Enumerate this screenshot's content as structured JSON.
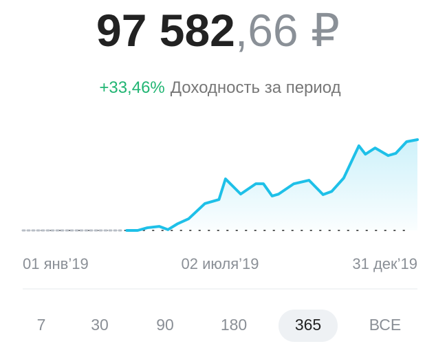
{
  "balance": {
    "whole": "97 582",
    "fraction": ",66 ₽"
  },
  "change": {
    "value": "+33,46%",
    "label": "Доходность за период"
  },
  "chart_data": {
    "type": "line",
    "series": [
      {
        "color": "#b8bec6",
        "x": [
          0,
          93
        ],
        "values": [
          0,
          0
        ]
      },
      {
        "color": "#1ec0e8",
        "x": [
          96,
          106,
          115,
          126,
          134,
          143,
          153,
          168,
          181,
          187,
          201,
          215,
          222,
          230,
          236,
          250,
          264,
          277,
          285,
          296,
          310,
          316,
          325,
          337,
          344,
          354,
          364
        ],
        "values": [
          0,
          0,
          1.0,
          1.5,
          0.3,
          2.5,
          4.3,
          9.9,
          11.4,
          19.0,
          13.4,
          17.2,
          17.2,
          12.7,
          13.4,
          17.2,
          18.5,
          13.2,
          14.4,
          19.3,
          31.2,
          28.1,
          30.4,
          27.6,
          28.4,
          32.7,
          33.46
        ]
      }
    ],
    "xlim": [
      0,
      364
    ],
    "ylim": [
      0,
      36
    ],
    "xticks": [
      {
        "value": 0,
        "label": "01 янв’19"
      },
      {
        "value": 182,
        "label": "02 июля’19"
      },
      {
        "value": 364,
        "label": "31 дек’19"
      }
    ]
  },
  "periods": {
    "options": [
      "7",
      "30",
      "90",
      "180",
      "365",
      "ВСЕ"
    ],
    "selected": 4
  }
}
